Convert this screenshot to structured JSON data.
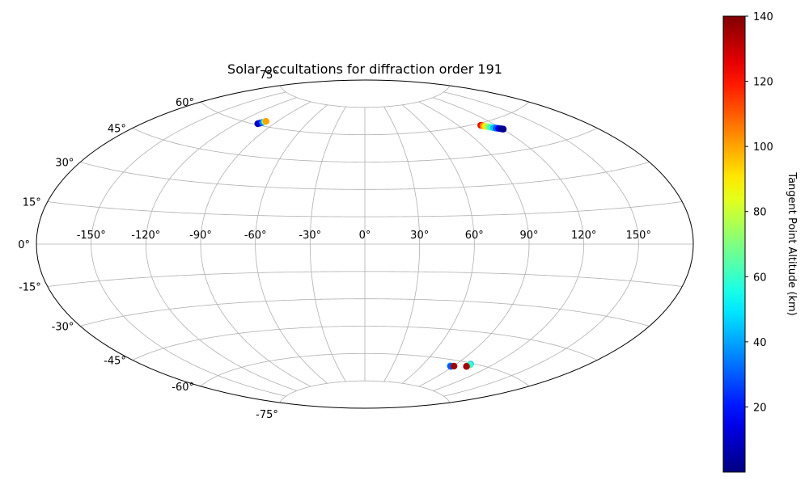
{
  "chart_data": {
    "type": "scatter",
    "projection": "aitoff",
    "title": "Solar occultations for diffraction order 191",
    "xlabel": "",
    "ylabel": "",
    "lon_ticks": [
      -150,
      -120,
      -90,
      -60,
      -30,
      0,
      30,
      60,
      90,
      120,
      150
    ],
    "lon_tick_labels": [
      "-150°",
      "-120°",
      "-90°",
      "-60°",
      "-30°",
      "0°",
      "30°",
      "60°",
      "90°",
      "120°",
      "150°"
    ],
    "lat_ticks": [
      -75,
      -60,
      -45,
      -30,
      -15,
      0,
      15,
      30,
      45,
      60,
      75
    ],
    "lat_tick_labels": [
      "-75°",
      "-60°",
      "-45°",
      "-30°",
      "-15°",
      "0°",
      "15°",
      "30°",
      "45°",
      "60°",
      "75°"
    ],
    "grid": true,
    "colormap": "jet",
    "colorbar": {
      "label": "Tangent Point Altitude (km)",
      "range": [
        0,
        140
      ],
      "ticks": [
        20,
        40,
        60,
        80,
        100,
        120,
        140
      ],
      "tick_labels": [
        "20",
        "40",
        "60",
        "80",
        "100",
        "120",
        "140"
      ]
    },
    "points": [
      {
        "lon": -103.5,
        "lat": 60.5,
        "value": 5
      },
      {
        "lon": -102.5,
        "lat": 61.0,
        "value": 15
      },
      {
        "lon": -101.5,
        "lat": 61.5,
        "value": 35
      },
      {
        "lon": -100.5,
        "lat": 62.0,
        "value": 70
      },
      {
        "lon": -100.0,
        "lat": 62.3,
        "value": 100
      },
      {
        "lon": 108.5,
        "lat": 59.0,
        "value": 125
      },
      {
        "lon": 109.5,
        "lat": 58.6,
        "value": 105
      },
      {
        "lon": 110.5,
        "lat": 58.2,
        "value": 90
      },
      {
        "lon": 112.0,
        "lat": 57.8,
        "value": 75
      },
      {
        "lon": 113.5,
        "lat": 57.3,
        "value": 60
      },
      {
        "lon": 115.0,
        "lat": 56.8,
        "value": 45
      },
      {
        "lon": 116.5,
        "lat": 56.4,
        "value": 30
      },
      {
        "lon": 118.0,
        "lat": 56.0,
        "value": 15
      },
      {
        "lon": 119.5,
        "lat": 55.6,
        "value": 5
      },
      {
        "lon": 120.5,
        "lat": 55.3,
        "value": 2
      },
      {
        "lon": 87.0,
        "lat": -63.0,
        "value": 40
      },
      {
        "lon": 88.0,
        "lat": -63.2,
        "value": 30
      },
      {
        "lon": 90.5,
        "lat": -62.8,
        "value": 135
      },
      {
        "lon": 102.0,
        "lat": -60.5,
        "value": 40
      },
      {
        "lon": 102.5,
        "lat": -60.8,
        "value": 60
      },
      {
        "lon": 101.5,
        "lat": -61.8,
        "value": 135
      }
    ]
  }
}
